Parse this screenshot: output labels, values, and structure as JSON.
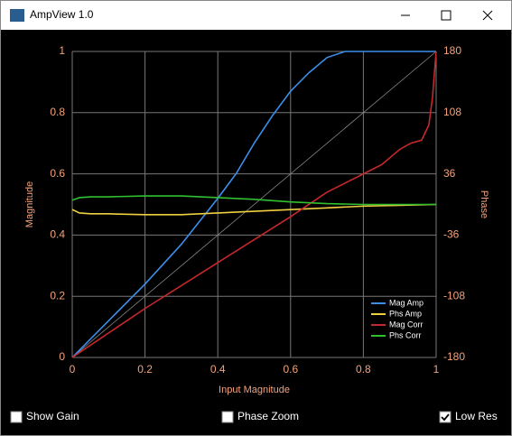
{
  "window": {
    "title": "AmpView 1.0"
  },
  "chart_data": {
    "type": "line",
    "xlabel": "Input Magnitude",
    "ylabel": "Magnitude",
    "y2label": "Phase",
    "xlim": [
      0,
      1
    ],
    "xticks": [
      0,
      0.2,
      0.4,
      0.6,
      0.8,
      1
    ],
    "ylim": [
      0,
      1
    ],
    "yticks": [
      0,
      0.2,
      0.4,
      0.6,
      0.8,
      1
    ],
    "y2lim": [
      -180,
      180
    ],
    "y2ticks": [
      -180,
      -108,
      -36,
      36,
      108,
      180
    ],
    "grid": true,
    "legend": "lower right",
    "series": [
      {
        "name": "Mag Amp",
        "color": "#3d8ee8",
        "axis": "y",
        "x": [
          0,
          0.1,
          0.2,
          0.3,
          0.4,
          0.45,
          0.5,
          0.55,
          0.6,
          0.65,
          0.7,
          0.75,
          1
        ],
        "values": [
          0,
          0.12,
          0.24,
          0.37,
          0.52,
          0.6,
          0.7,
          0.79,
          0.87,
          0.93,
          0.98,
          1,
          1
        ]
      },
      {
        "name": "Phs Amp",
        "color": "#f0d040",
        "axis": "y2",
        "x": [
          0,
          0.02,
          0.05,
          0.1,
          0.2,
          0.3,
          0.4,
          0.5,
          0.6,
          0.7,
          0.8,
          0.9,
          1
        ],
        "values": [
          -6,
          -10,
          -11,
          -11,
          -12,
          -12,
          -10,
          -8,
          -6,
          -4,
          -2,
          -1,
          0
        ]
      },
      {
        "name": "Mag Corr",
        "color": "#c8282a",
        "axis": "y",
        "x": [
          0,
          0.2,
          0.4,
          0.6,
          0.7,
          0.8,
          0.85,
          0.9,
          0.93,
          0.96,
          0.98,
          0.99,
          1
        ],
        "values": [
          0,
          0.16,
          0.31,
          0.46,
          0.54,
          0.6,
          0.63,
          0.68,
          0.7,
          0.71,
          0.76,
          0.85,
          1
        ]
      },
      {
        "name": "Phs Corr",
        "color": "#30c030",
        "axis": "y2",
        "x": [
          0,
          0.02,
          0.05,
          0.1,
          0.2,
          0.3,
          0.4,
          0.5,
          0.6,
          0.7,
          0.8,
          0.9,
          1
        ],
        "values": [
          5,
          8,
          9,
          9,
          10,
          10,
          8,
          6,
          3,
          1,
          0,
          0,
          0
        ]
      }
    ]
  },
  "controls": [
    {
      "label": "Show Gain",
      "checked": false
    },
    {
      "label": "Phase Zoom",
      "checked": false
    },
    {
      "label": "Low Res",
      "checked": true
    }
  ]
}
